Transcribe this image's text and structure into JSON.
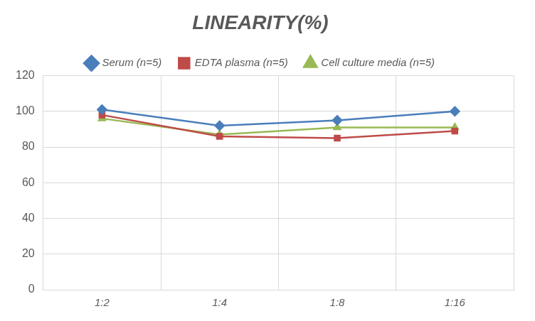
{
  "chart_data": {
    "type": "line",
    "title": "LINEARITY(%)",
    "categories": [
      "1:2",
      "1:4",
      "1:8",
      "1:16"
    ],
    "series": [
      {
        "name": "Serum (n=5)",
        "color": "#4a7ebb",
        "marker": "diamond",
        "line_style": "solid",
        "values": [
          101,
          92,
          95,
          100
        ]
      },
      {
        "name": "EDTA plasma (n=5)",
        "color": "#be4b48",
        "marker": "square",
        "line_style": "solid",
        "values": [
          98,
          86,
          85,
          89
        ]
      },
      {
        "name": "Cell culture media (n=5)",
        "color": "#98b954",
        "marker": "triangle",
        "line_style": "solid",
        "values": [
          96,
          87,
          91,
          91
        ]
      }
    ],
    "ylim": [
      0,
      120
    ],
    "yticks": [
      0,
      20,
      40,
      60,
      80,
      100,
      120
    ],
    "grid": true,
    "legend": "top"
  }
}
